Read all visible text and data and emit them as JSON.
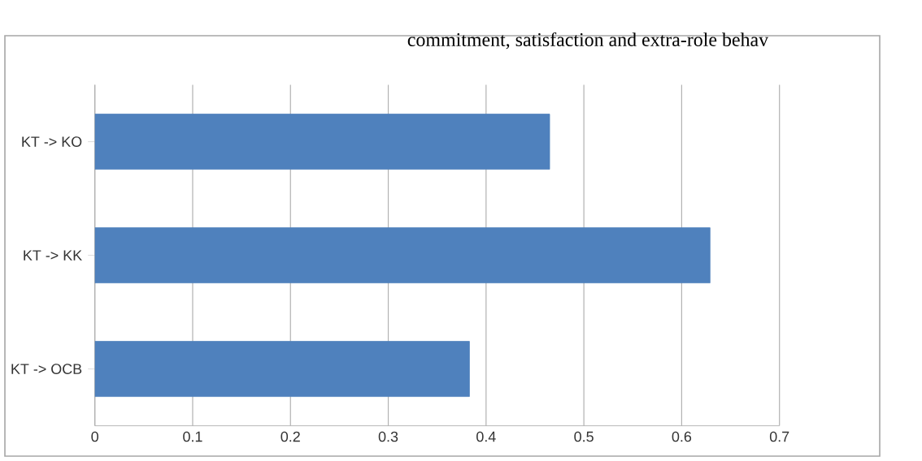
{
  "chart_data": {
    "type": "bar",
    "orientation": "horizontal",
    "title": "commitment, satisfaction and extra-role behav",
    "categories": [
      "KT -> KO",
      "KT -> KK",
      "KT -> OCB"
    ],
    "values": [
      0.465,
      0.629,
      0.383
    ],
    "color": "#4f81bd",
    "xlim": [
      0,
      0.7
    ],
    "xticks": [
      0,
      0.1,
      0.2,
      0.3,
      0.4,
      0.5,
      0.6,
      0.7
    ],
    "grid": "x"
  }
}
